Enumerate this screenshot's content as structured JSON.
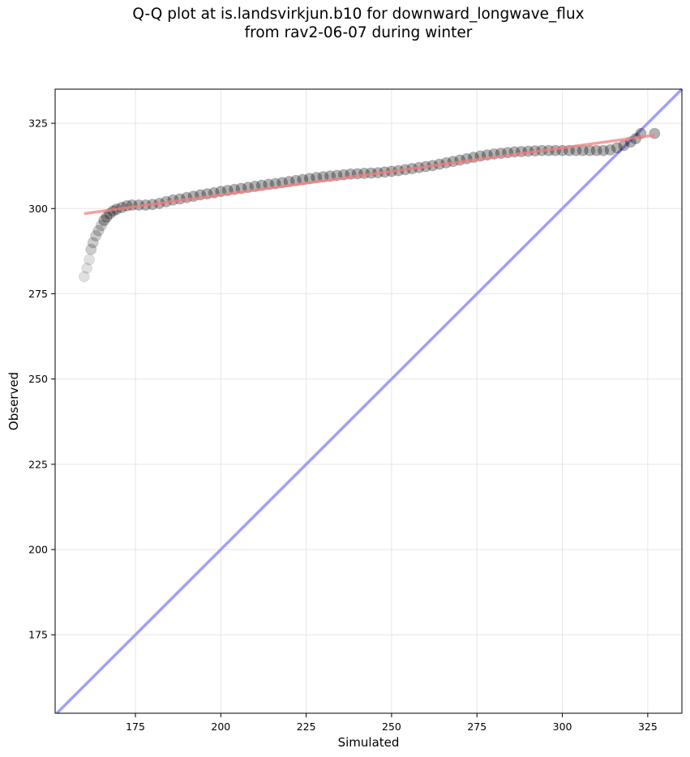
{
  "chart_data": {
    "type": "scatter",
    "title_lines": [
      "Q-Q plot at is.landsvirkjun.b10 for downward_longwave_flux",
      "from rav2-06-07 during winter"
    ],
    "xlabel": "Simulated",
    "ylabel": "Observed",
    "xlim": [
      151.5,
      335
    ],
    "ylim": [
      152,
      335
    ],
    "xticks": [
      175,
      200,
      225,
      250,
      275,
      300,
      325
    ],
    "yticks": [
      175,
      200,
      225,
      250,
      275,
      300,
      325
    ],
    "grid": true,
    "points": [
      [
        160.0,
        280.0
      ],
      [
        160.8,
        282.5
      ],
      [
        161.5,
        285.0
      ],
      [
        162.0,
        288.0
      ],
      [
        162.6,
        290.0
      ],
      [
        163.4,
        292.0
      ],
      [
        164.2,
        293.5
      ],
      [
        165.0,
        295.0
      ],
      [
        165.8,
        296.5
      ],
      [
        166.6,
        297.5
      ],
      [
        167.5,
        298.5
      ],
      [
        168.5,
        299.3
      ],
      [
        169.5,
        299.8
      ],
      [
        171.0,
        300.3
      ],
      [
        172.5,
        300.8
      ],
      [
        174.0,
        301.0
      ],
      [
        176.0,
        301.0
      ],
      [
        178.0,
        301.0
      ],
      [
        180.0,
        301.2
      ],
      [
        182.0,
        301.5
      ],
      [
        184.0,
        302.0
      ],
      [
        186.0,
        302.5
      ],
      [
        188.0,
        302.8
      ],
      [
        190.0,
        303.2
      ],
      [
        192.0,
        303.6
      ],
      [
        194.0,
        304.0
      ],
      [
        196.0,
        304.3
      ],
      [
        198.0,
        304.6
      ],
      [
        200.0,
        305.0
      ],
      [
        202.0,
        305.3
      ],
      [
        204.0,
        305.6
      ],
      [
        206.0,
        305.9
      ],
      [
        208.0,
        306.2
      ],
      [
        210.0,
        306.5
      ],
      [
        212.0,
        306.8
      ],
      [
        214.0,
        307.1
      ],
      [
        216.0,
        307.3
      ],
      [
        218.0,
        307.6
      ],
      [
        220.0,
        307.9
      ],
      [
        222.0,
        308.2
      ],
      [
        224.0,
        308.5
      ],
      [
        226.0,
        308.8
      ],
      [
        228.0,
        309.1
      ],
      [
        230.0,
        309.3
      ],
      [
        232.0,
        309.5
      ],
      [
        234.0,
        309.7
      ],
      [
        236.0,
        309.9
      ],
      [
        238.0,
        310.1
      ],
      [
        240.0,
        310.2
      ],
      [
        242.0,
        310.3
      ],
      [
        244.0,
        310.4
      ],
      [
        246.0,
        310.5
      ],
      [
        248.0,
        310.7
      ],
      [
        250.0,
        310.9
      ],
      [
        252.0,
        311.1
      ],
      [
        254.0,
        311.4
      ],
      [
        256.0,
        311.7
      ],
      [
        258.0,
        312.0
      ],
      [
        260.0,
        312.3
      ],
      [
        262.0,
        312.6
      ],
      [
        264.0,
        313.0
      ],
      [
        266.0,
        313.4
      ],
      [
        268.0,
        313.8
      ],
      [
        270.0,
        314.2
      ],
      [
        272.0,
        314.6
      ],
      [
        274.0,
        315.0
      ],
      [
        276.0,
        315.4
      ],
      [
        278.0,
        315.7
      ],
      [
        280.0,
        316.0
      ],
      [
        282.0,
        316.2
      ],
      [
        284.0,
        316.4
      ],
      [
        286.0,
        316.6
      ],
      [
        288.0,
        316.7
      ],
      [
        290.0,
        316.8
      ],
      [
        292.0,
        316.9
      ],
      [
        294.0,
        317.0
      ],
      [
        296.0,
        317.0
      ],
      [
        298.0,
        317.0
      ],
      [
        300.0,
        317.0
      ],
      [
        302.0,
        317.0
      ],
      [
        304.0,
        317.0
      ],
      [
        306.0,
        317.0
      ],
      [
        308.0,
        317.0
      ],
      [
        310.0,
        317.0
      ],
      [
        312.0,
        317.0
      ],
      [
        314.0,
        317.2
      ],
      [
        316.0,
        317.8
      ],
      [
        318.0,
        318.5
      ],
      [
        320.0,
        319.5
      ],
      [
        321.5,
        320.5
      ],
      [
        323.0,
        322.0
      ],
      [
        327.0,
        322.0
      ]
    ],
    "fit_line": {
      "x": [
        160,
        327
      ],
      "y": [
        298.5,
        321.5
      ],
      "color": "#f08080"
    },
    "identity_line": {
      "color": "#a0a0f8"
    },
    "point_color": "#000000"
  }
}
